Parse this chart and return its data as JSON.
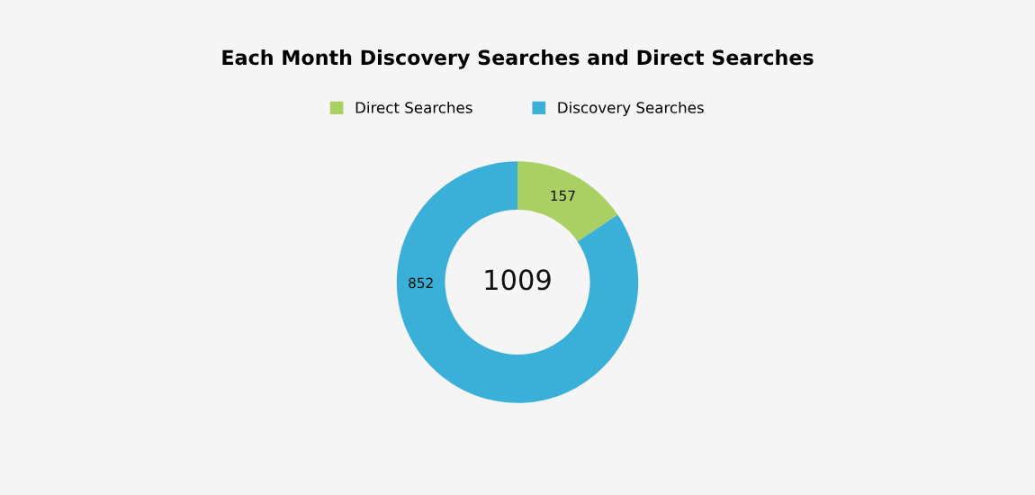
{
  "chart_data": {
    "type": "donut",
    "title": "Each Month Discovery Searches and Direct Searches",
    "categories": [
      "Direct Searches",
      "Discovery Searches"
    ],
    "values": [
      157,
      852
    ],
    "colors": [
      "#aacf63",
      "#3ab0d8"
    ],
    "data_labels": true,
    "legend": "top",
    "annotations": [
      "1009"
    ]
  }
}
